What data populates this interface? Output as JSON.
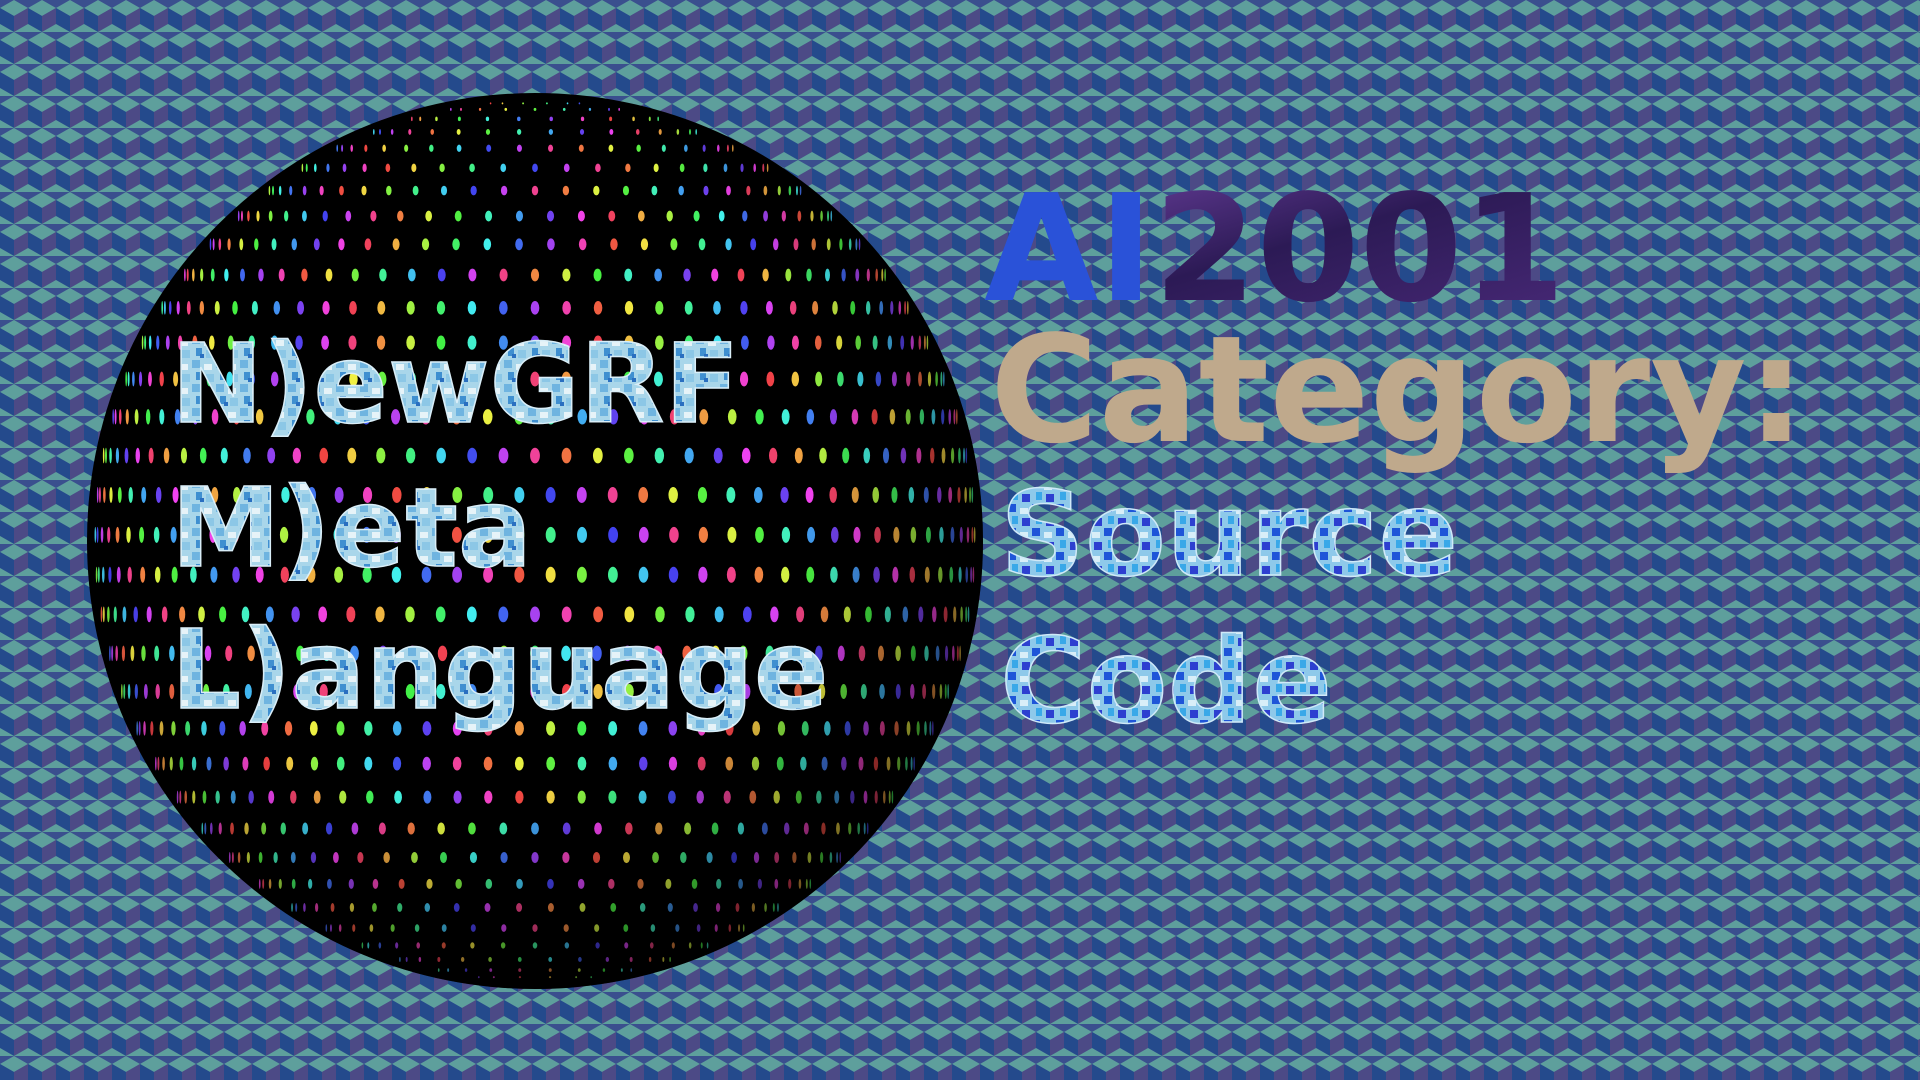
{
  "sphere": {
    "lines": [
      "N)ewGRF",
      "M)eta",
      "L)anguage"
    ]
  },
  "title": {
    "brand": "AI",
    "year": "2001"
  },
  "category": {
    "label": "Category:",
    "value": [
      "Source",
      "Code"
    ]
  }
}
